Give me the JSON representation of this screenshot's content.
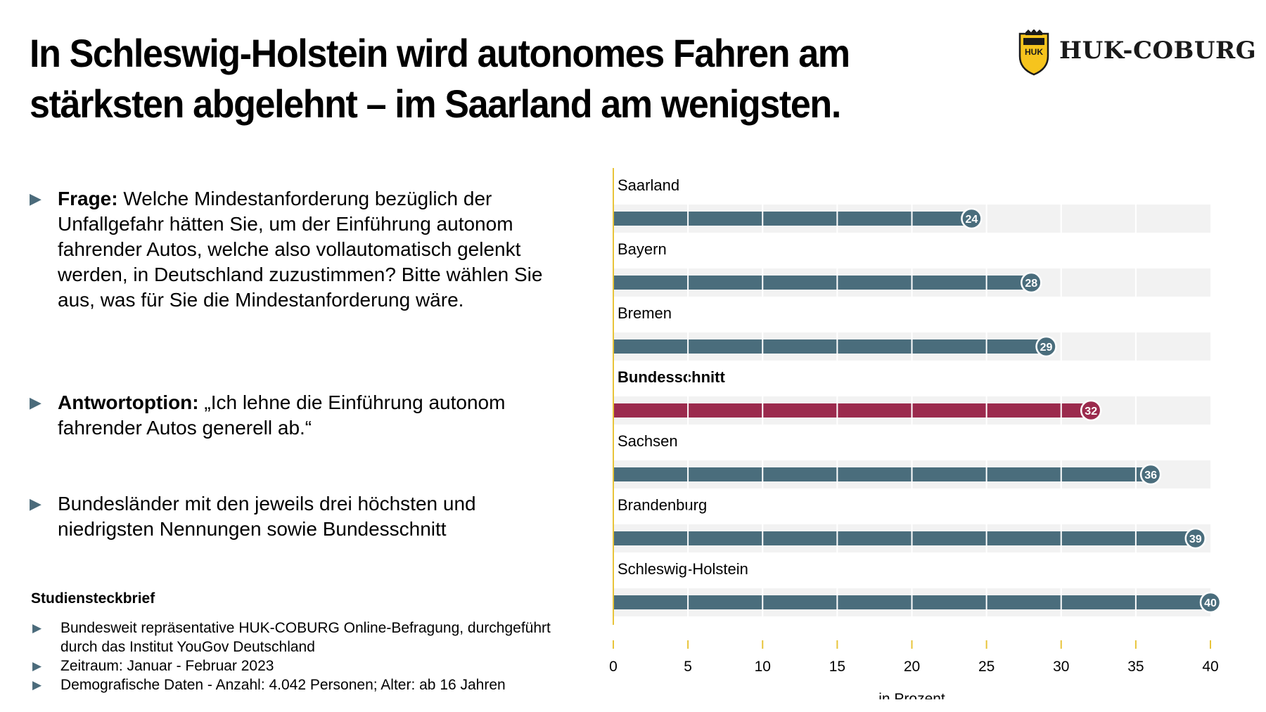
{
  "title": "In Schleswig-Holstein wird autonomes Fahren am stärksten abgelehnt – im Saarland am wenigsten.",
  "logo": {
    "text": "HUK-COBURG",
    "badge_text": "HUK"
  },
  "bullets": [
    {
      "bold": "Frage:",
      "text": " Welche Mindestanforderung bezüglich der Unfallgefahr hätten Sie, um der Einführung autonom fahrender Autos, welche also vollautomatisch gelenkt werden, in Deutschland zuzustimmen? Bitte wählen Sie aus, was für Sie die Mindestanforderung wäre."
    },
    {
      "bold": "Antwortoption:",
      "text": " „Ich lehne die Einführung autonom fahrender Autos generell ab.“"
    },
    {
      "bold": "",
      "text": "Bundesländer mit den jeweils drei höchsten und niedrigsten Nennungen sowie Bundesschnitt"
    }
  ],
  "study": {
    "title": "Studiensteckbrief",
    "items": [
      "Bundesweit repräsentative HUK-COBURG Online-Befragung, durchgeführt durch das Institut YouGov Deutschland",
      "Zeitraum: Januar - Februar 2023",
      "Demografische Daten - Anzahl: 4.042 Personen; Alter: ab 16 Jahren"
    ]
  },
  "chart_data": {
    "type": "bar",
    "orientation": "horizontal",
    "categories": [
      "Saarland",
      "Bayern",
      "Bremen",
      "Bundesschnitt",
      "Sachsen",
      "Brandenburg",
      "Schleswig-Holstein"
    ],
    "values": [
      24,
      28,
      29,
      32,
      36,
      39,
      40
    ],
    "highlight": "Bundesschnitt",
    "xlabel": "in Prozent",
    "xlim": [
      0,
      40
    ],
    "xticks": [
      0,
      5,
      10,
      15,
      20,
      25,
      30,
      35,
      40
    ],
    "colors": {
      "bar": "#4a6d7c",
      "highlight": "#9b2a4d",
      "track": "#f2f2f2",
      "axis": "#e8c43a"
    }
  }
}
